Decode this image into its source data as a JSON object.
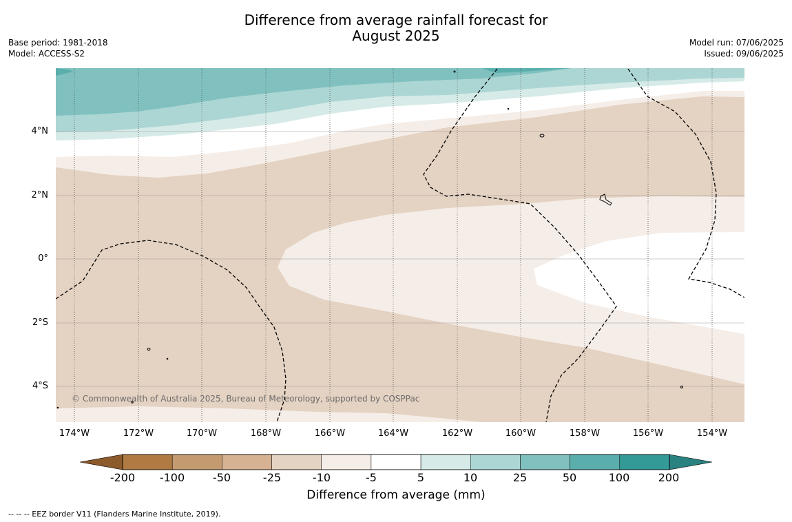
{
  "title_line1": "Difference from average rainfall forecast for",
  "title_line2": "August 2025",
  "meta_left": [
    "Base period: 1981-2018",
    "Model: ACCESS-S2"
  ],
  "meta_right": [
    "Model run: 07/06/2025",
    "Issued: 09/06/2025"
  ],
  "lat_labels": [
    {
      "text": "4°N",
      "value": 4
    },
    {
      "text": "2°N",
      "value": 2
    },
    {
      "text": "0°",
      "value": 0
    },
    {
      "text": "2°S",
      "value": -2
    },
    {
      "text": "4°S",
      "value": -4
    }
  ],
  "lon_labels": [
    {
      "text": "174°W",
      "value": -174
    },
    {
      "text": "172°W",
      "value": -172
    },
    {
      "text": "170°W",
      "value": -170
    },
    {
      "text": "168°W",
      "value": -168
    },
    {
      "text": "166°W",
      "value": -166
    },
    {
      "text": "164°W",
      "value": -164
    },
    {
      "text": "162°W",
      "value": -162
    },
    {
      "text": "160°W",
      "value": -160
    },
    {
      "text": "158°W",
      "value": -158
    },
    {
      "text": "156°W",
      "value": -156
    },
    {
      "text": "154°W",
      "value": -154
    }
  ],
  "copyright": "© Commonwealth of Australia 2025, Bureau of Meteorology, supported by COSPPac",
  "colorbar": {
    "label": "Difference from average (mm)",
    "ticks": [
      "-200",
      "-100",
      "-50",
      "-25",
      "-10",
      "-5",
      "5",
      "10",
      "25",
      "50",
      "100",
      "200"
    ],
    "colors": [
      "#b07a43",
      "#c49a70",
      "#d6b293",
      "#e4d2c2",
      "#f5ede7",
      "#ffffff",
      "#d6ebe8",
      "#acd6d4",
      "#80c1bf",
      "#5aaeac",
      "#349a98"
    ],
    "under_color": "#8d5a2b",
    "over_color": "#2a8280"
  },
  "footer": "--  --  -- EEZ border V11 (Flanders Marine Institute, 2019)."
}
